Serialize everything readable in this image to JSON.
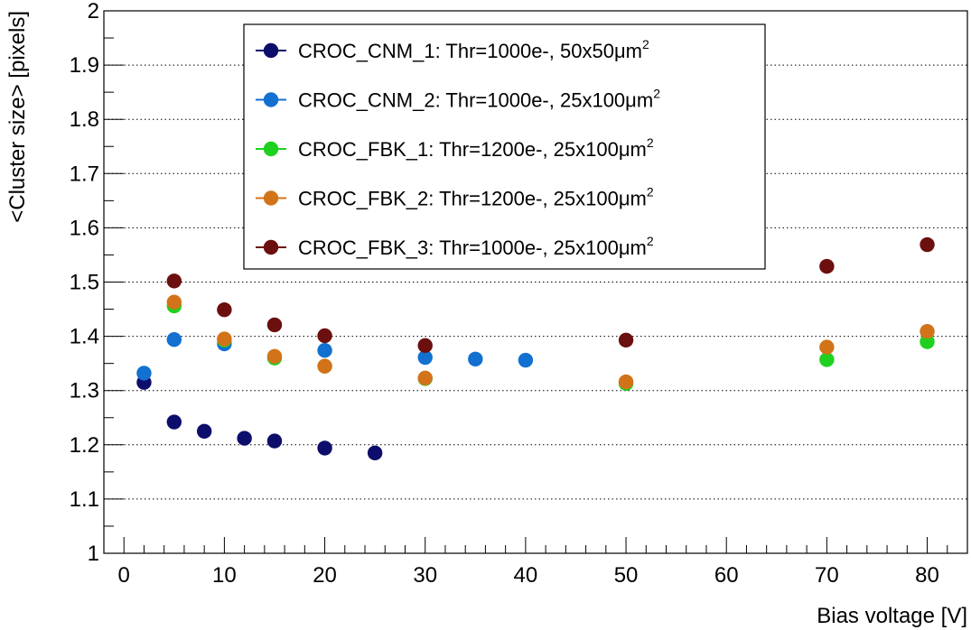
{
  "chart_data": {
    "type": "scatter",
    "title": "",
    "xlabel": "Bias voltage [V]",
    "ylabel": "<Cluster size> [pixels]",
    "xlim": [
      -2,
      84
    ],
    "ylim": [
      1,
      2
    ],
    "x_major_ticks": [
      0,
      10,
      20,
      30,
      40,
      50,
      60,
      70,
      80
    ],
    "x_tick_labels": [
      "0",
      "10",
      "20",
      "30",
      "40",
      "50",
      "60",
      "70",
      "80"
    ],
    "y_major_ticks": [
      1,
      1.1,
      1.2,
      1.3,
      1.4,
      1.5,
      1.6,
      1.7,
      1.8,
      1.9,
      2
    ],
    "y_tick_labels": [
      "1",
      "1.1",
      "1.2",
      "1.3",
      "1.4",
      "1.5",
      "1.6",
      "1.7",
      "1.8",
      "1.9",
      "2"
    ],
    "grid": "horizontal dotted",
    "legend_position": "top-center",
    "series": [
      {
        "name": "CROC_CNM_1: Thr=1000e-, 50x50",
        "unit": "μm",
        "sup": "2",
        "color": "#0d0d6b",
        "x": [
          2,
          5,
          8,
          12,
          15,
          20,
          25
        ],
        "y": [
          1.315,
          1.242,
          1.225,
          1.212,
          1.207,
          1.194,
          1.185
        ]
      },
      {
        "name": "CROC_CNM_2: Thr=1000e-, 25x100",
        "unit": "μm",
        "sup": "2",
        "color": "#1270d0",
        "x": [
          2,
          5,
          10,
          20,
          30,
          35,
          40
        ],
        "y": [
          1.332,
          1.394,
          1.386,
          1.374,
          1.361,
          1.358,
          1.356
        ]
      },
      {
        "name": "CROC_FBK_1: Thr=1200e-, 25x100",
        "unit": "μm",
        "sup": "2",
        "color": "#1ed11e",
        "x": [
          5,
          10,
          15,
          20,
          30,
          50,
          70,
          80
        ],
        "y": [
          1.456,
          1.393,
          1.36,
          1.345,
          1.322,
          1.313,
          1.357,
          1.39
        ]
      },
      {
        "name": "CROC_FBK_2: Thr=1200e-, 25x100",
        "unit": "μm",
        "sup": "2",
        "color": "#d2731a",
        "x": [
          5,
          10,
          15,
          20,
          30,
          50,
          70,
          80
        ],
        "y": [
          1.463,
          1.395,
          1.363,
          1.345,
          1.323,
          1.316,
          1.38,
          1.409
        ]
      },
      {
        "name": "CROC_FBK_3: Thr=1000e-, 25x100",
        "unit": "μm",
        "sup": "2",
        "color": "#6b0f0f",
        "x": [
          5,
          10,
          15,
          20,
          30,
          50,
          70,
          80
        ],
        "y": [
          1.502,
          1.449,
          1.421,
          1.401,
          1.383,
          1.393,
          1.529,
          1.569
        ]
      }
    ]
  }
}
